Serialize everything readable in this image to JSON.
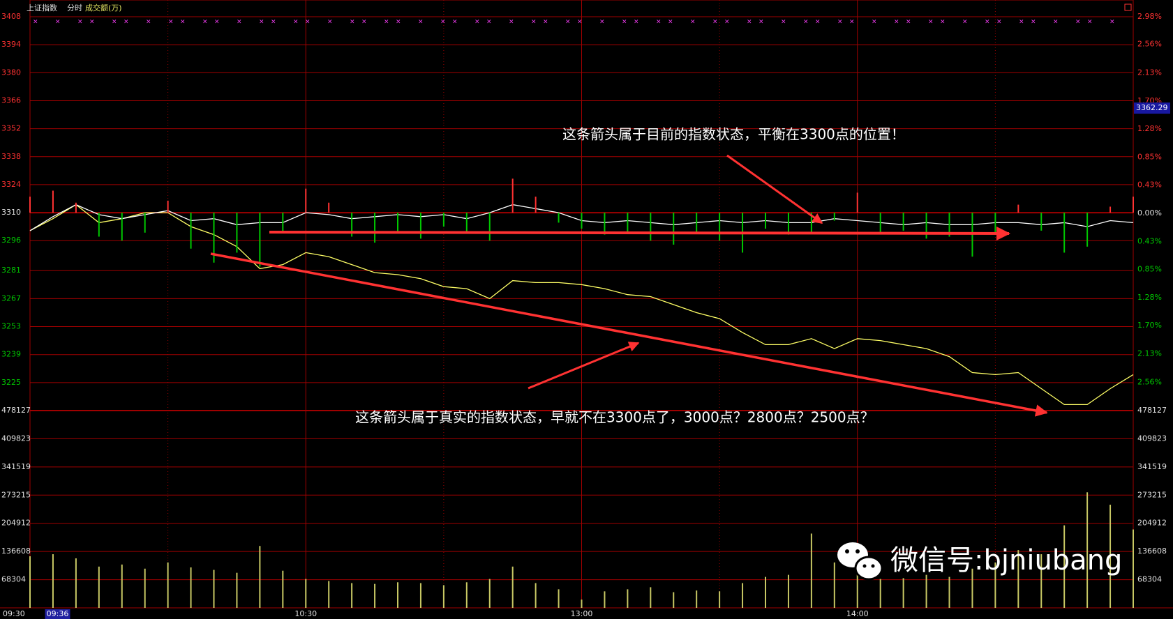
{
  "chart_data": [
    {
      "type": "line",
      "title": "上证指数",
      "subtitle": "分时",
      "annotations": [
        "这条箭头属于目前的指数状态，平衡在3300点的位置！",
        "这条箭头属于真实的指数状态，早就不在3300点了，3000点？2800点？2500点？"
      ],
      "watermark": "微信号:bjniubang",
      "x": [
        0,
        5,
        10,
        15,
        20,
        25,
        30,
        35,
        40,
        45,
        50,
        55,
        60,
        65,
        70,
        75,
        80,
        85,
        90,
        95,
        100,
        105,
        110,
        115,
        120,
        125,
        130,
        135,
        140,
        145,
        150,
        155,
        160,
        165,
        170,
        175,
        180,
        185,
        190,
        195,
        200,
        205,
        210,
        215,
        220,
        225,
        230,
        235,
        240
      ],
      "xlim": [
        0,
        240
      ],
      "xticks": [
        {
          "value": 0,
          "label": "09:30"
        },
        {
          "value": 60,
          "label": "10:30"
        },
        {
          "value": 120,
          "label": "13:00"
        },
        {
          "value": 180,
          "label": "14:00"
        }
      ],
      "cursor_x": {
        "value": 6,
        "label": "09:36"
      },
      "cursor_y": 3362.29,
      "ylim": [
        3211,
        3408
      ],
      "yticks": [
        3408,
        3394,
        3380,
        3366,
        3352,
        3338,
        3324,
        3310,
        3296,
        3281,
        3267,
        3253,
        3239,
        3225
      ],
      "y2lim": [
        -2.99,
        2.98
      ],
      "y2ticks": [
        {
          "value": 2.98,
          "label": "2.98%"
        },
        {
          "value": 2.56,
          "label": "2.56%"
        },
        {
          "value": 2.13,
          "label": "2.13%"
        },
        {
          "value": 1.7,
          "label": "1.70%"
        },
        {
          "value": 1.28,
          "label": "1.28%"
        },
        {
          "value": 0.85,
          "label": "0.85%"
        },
        {
          "value": 0.43,
          "label": "0.43%"
        },
        {
          "value": 0,
          "label": "0.00%"
        },
        {
          "value": -0.43,
          "label": "0.43%"
        },
        {
          "value": -0.85,
          "label": "0.85%"
        },
        {
          "value": -1.28,
          "label": "1.28%"
        },
        {
          "value": -1.7,
          "label": "1.70%"
        },
        {
          "value": -2.13,
          "label": "2.13%"
        },
        {
          "value": -2.56,
          "label": "2.56%"
        }
      ],
      "baseline": 3310,
      "up_color": "#ff3232",
      "down_color": "#00c800",
      "grid_color": "#a00000",
      "series": [
        {
          "color": "#ffff66",
          "values": [
            3301,
            3307,
            3314,
            3305,
            3307,
            3310,
            3310,
            3303,
            3299,
            3293,
            3282,
            3284,
            3290,
            3288,
            3284,
            3280,
            3279,
            3277,
            3273,
            3272,
            3267,
            3276,
            3275,
            3275,
            3274,
            3272,
            3269,
            3268,
            3264,
            3260,
            3257,
            3250,
            3244,
            3244,
            3247,
            3242,
            3247,
            3246,
            3244,
            3242,
            3238,
            3230,
            3229,
            3230,
            3222,
            3214,
            3214,
            3222,
            3229
          ]
        },
        {
          "color": "#ffffff",
          "values": [
            3301,
            3308,
            3314,
            3309,
            3307,
            3309,
            3311,
            3306,
            3307,
            3304,
            3305,
            3305,
            3310,
            3309,
            3307,
            3308,
            3309,
            3308,
            3309,
            3307,
            3310,
            3314,
            3312,
            3310,
            3306,
            3305,
            3306,
            3305,
            3304,
            3305,
            3306,
            3305,
            3306,
            3305,
            3305,
            3307,
            3306,
            3305,
            3304,
            3305,
            3304,
            3304,
            3305,
            3305,
            3304,
            3305,
            3303,
            3306,
            3305
          ]
        },
        {
          "type": "bar",
          "values": [
            3318,
            3321,
            3315,
            3298,
            3296,
            3300,
            3316,
            3292,
            3285,
            3290,
            3283,
            3300,
            3322,
            3315,
            3298,
            3295,
            3300,
            3297,
            3303,
            3300,
            3296,
            3327,
            3318,
            3305,
            3302,
            3299,
            3300,
            3296,
            3294,
            3300,
            3296,
            3290,
            3302,
            3299,
            3300,
            3306,
            3320,
            3300,
            3301,
            3297,
            3298,
            3288,
            3299,
            3314,
            3301,
            3290,
            3293,
            3313,
            3318
          ]
        }
      ]
    },
    {
      "type": "bar",
      "title": "成交额(万)",
      "color": "#c8c864",
      "ylim": [
        0,
        478127
      ],
      "yticks": [
        478127,
        409823,
        341519,
        273215,
        204912,
        136608,
        68304
      ],
      "values": [
        125000,
        130000,
        120000,
        100000,
        105000,
        95000,
        110000,
        98000,
        92000,
        85000,
        150000,
        90000,
        70000,
        65000,
        60000,
        58000,
        62000,
        60000,
        55000,
        62000,
        70000,
        100000,
        60000,
        45000,
        20000,
        40000,
        45000,
        50000,
        38000,
        42000,
        40000,
        60000,
        75000,
        80000,
        180000,
        110000,
        90000,
        70000,
        72000,
        80000,
        75000,
        95000,
        110000,
        140000,
        130000,
        200000,
        280000,
        250000,
        190000
      ]
    }
  ]
}
